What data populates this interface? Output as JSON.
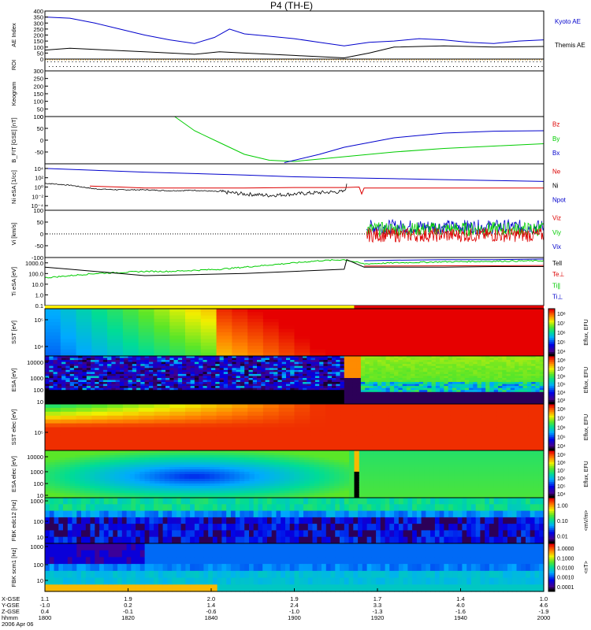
{
  "title": "P4 (TH-E)",
  "colors": {
    "kyoto": "#0000cc",
    "themis": "#000000",
    "red": "#dd0000",
    "green": "#00cc00",
    "blue": "#0000cc",
    "black": "#000000"
  },
  "chart_data": {
    "type": "line",
    "x_range": [
      "15:00",
      "20:00"
    ],
    "time_ticks": [
      "1500",
      "1520",
      "1540",
      "1600",
      "1620",
      "1640",
      "1700",
      "1720",
      "1740",
      "1800",
      "1820",
      "1840",
      "1900",
      "1920",
      "1940",
      "2000"
    ],
    "footer": {
      "row_labels": [
        "X-GSE",
        "Y-GSE",
        "Z-GSE",
        "hhmm",
        "2006 Apr 06"
      ],
      "columns": [
        {
          "x": "1.1",
          "y": "-1.0",
          "z": "0.4",
          "t": "1800"
        },
        {
          "x": "1.9",
          "y": "0.2",
          "z": "-0.1",
          "t": "1820"
        },
        {
          "x": "2.0",
          "y": "1.4",
          "z": "-0.6",
          "t": "1840"
        },
        {
          "x": "1.9",
          "y": "2.4",
          "z": "-1.0",
          "t": "1900"
        },
        {
          "x": "1.7",
          "y": "3.3",
          "z": "-1.3",
          "t": "1920"
        },
        {
          "x": "1.4",
          "y": "4.0",
          "z": "-1.6",
          "t": "1940"
        },
        {
          "x": "1.0",
          "y": "4.6",
          "z": "-1.9",
          "t": "2000"
        }
      ]
    },
    "panels": [
      {
        "id": "ae",
        "ylabel": "AE Index",
        "ylim": [
          0,
          400
        ],
        "yticks": [
          "0",
          "50",
          "100",
          "150",
          "200",
          "250",
          "300",
          "350",
          "400"
        ],
        "legend": [
          "Kyoto AE",
          "Themis AE"
        ],
        "series": [
          {
            "name": "Kyoto AE",
            "x": [
              0,
              0.05,
              0.1,
              0.15,
              0.2,
              0.25,
              0.3,
              0.34,
              0.37,
              0.4,
              0.45,
              0.5,
              0.55,
              0.6,
              0.65,
              0.7,
              0.75,
              0.8,
              0.85,
              0.9,
              0.95,
              1.0
            ],
            "y": [
              350,
              340,
              300,
              250,
              200,
              160,
              130,
              180,
              250,
              210,
              190,
              170,
              140,
              110,
              140,
              150,
              170,
              160,
              140,
              130,
              150,
              160
            ]
          },
          {
            "name": "Themis AE",
            "x": [
              0,
              0.05,
              0.1,
              0.2,
              0.3,
              0.35,
              0.4,
              0.5,
              0.6,
              0.65,
              0.7,
              0.8,
              0.9,
              1.0
            ],
            "y": [
              75,
              90,
              80,
              60,
              40,
              60,
              50,
              30,
              10,
              50,
              100,
              110,
              100,
              105
            ]
          }
        ]
      },
      {
        "id": "roi",
        "ylabel": "ROI"
      },
      {
        "id": "keogram",
        "ylabel": "Keogram",
        "ylim": [
          0,
          300
        ],
        "yticks": [
          "0",
          "50",
          "100",
          "150",
          "200",
          "250",
          "300"
        ]
      },
      {
        "id": "bfit",
        "ylabel": "B_FIT [GSE] [nT]",
        "ylim": [
          -100,
          100
        ],
        "yticks": [
          "-50",
          "0",
          "50",
          "100"
        ],
        "legend": [
          "Bz",
          "By",
          "Bx"
        ],
        "series": [
          {
            "name": "By",
            "x": [
              0.26,
              0.3,
              0.35,
              0.4,
              0.45,
              0.5,
              0.55,
              0.6,
              0.7,
              0.8,
              0.9,
              1.0
            ],
            "y": [
              100,
              40,
              -10,
              -60,
              -85,
              -90,
              -80,
              -70,
              -50,
              -35,
              -25,
              -15
            ]
          },
          {
            "name": "Bx",
            "x": [
              0.48,
              0.55,
              0.6,
              0.7,
              0.8,
              0.9,
              1.0
            ],
            "y": [
              -95,
              -60,
              -30,
              10,
              30,
              38,
              40
            ]
          }
        ]
      },
      {
        "id": "ni",
        "ylabel": "Ni eSA [1/cc]",
        "ylim_log": [
          -5,
          5
        ],
        "yticks": [
          "10⁻⁴",
          "10⁻²",
          "10⁰",
          "10²",
          "10⁴"
        ],
        "legend": [
          "Ne",
          "Ni",
          "Npot"
        ],
        "series": [
          {
            "name": "Ni",
            "x": [
              0,
              0.1,
              0.2,
              0.3,
              0.4,
              0.5,
              0.6,
              0.7,
              0.8,
              0.9,
              1.0
            ],
            "y": [
              4,
              3.6,
              3.2,
              2.9,
              2.6,
              2.2,
              2.0,
              1.8,
              1.6,
              1.4,
              1.2
            ]
          },
          {
            "name": "Ne",
            "x": [
              0.09,
              0.15,
              0.2,
              0.3,
              0.4,
              0.5,
              0.6,
              0.63,
              0.635,
              0.64,
              0.7,
              0.8,
              0.9,
              1.0
            ],
            "y": [
              0.2,
              0,
              -0.2,
              -0.2,
              -0.2,
              -0.1,
              -0.1,
              0,
              -1.5,
              -0.2,
              -0.2,
              -0.2,
              -0.2,
              -0.2
            ]
          },
          {
            "name": "Npot",
            "x": [
              0,
              0.05,
              0.1,
              0.15,
              0.2,
              0.25,
              0.3,
              0.35,
              0.4,
              0.45,
              0.5,
              0.55,
              0.6,
              0.605,
              0.62,
              0.64
            ],
            "y": [
              0.8,
              0.4,
              -0.4,
              -0.6,
              -0.6,
              -0.8,
              -0.7,
              -1.0,
              -1.5,
              -1.8,
              -1.5,
              -1.2,
              -1.0,
              0.4,
              0.2,
              -0.2
            ]
          }
        ]
      },
      {
        "id": "vi",
        "ylabel": "Vi [km/s]",
        "ylim": [
          -100,
          100
        ],
        "yticks": [
          "-100",
          "-50",
          "0",
          "50",
          "100"
        ],
        "legend": [
          "Viz",
          "Viy",
          "Vix"
        ]
      },
      {
        "id": "ti",
        "ylabel": "Ti eSA [eV]",
        "ylim_log": [
          -1,
          3.5
        ],
        "yticks": [
          "0.1",
          "1.0",
          "10.0",
          "100.0",
          "1000.0"
        ],
        "legend": [
          "Tell",
          "Te⊥",
          "Ti∥",
          "Ti⊥"
        ],
        "series": [
          {
            "name": "Tell",
            "x": [
              0,
              0.05,
              0.1,
              0.15,
              0.2,
              0.3,
              0.4,
              0.5,
              0.6,
              0.605,
              0.62,
              0.64,
              0.7,
              0.8,
              0.9,
              1.0
            ],
            "y": [
              2.6,
              2.4,
              2.2,
              2.0,
              1.8,
              1.9,
              2.0,
              2.2,
              2.4,
              3.3,
              3.0,
              2.6,
              2.6,
              2.6,
              2.65,
              2.65
            ]
          },
          {
            "name": "Ti∥",
            "x": [
              0,
              0.05,
              0.1,
              0.15,
              0.2,
              0.25,
              0.3,
              0.35,
              0.4,
              0.45,
              0.5,
              0.55,
              0.6,
              0.62,
              0.64,
              0.7,
              0.8,
              0.9,
              1.0
            ],
            "y": [
              1.6,
              1.8,
              2.0,
              2.1,
              2.2,
              2.2,
              2.3,
              2.4,
              2.6,
              2.8,
              3.0,
              3.2,
              3.3,
              3.1,
              2.9,
              3.0,
              3.1,
              3.15,
              3.2
            ]
          },
          {
            "name": "Ti⊥",
            "x": [
              0.64,
              0.7,
              0.8,
              0.9,
              1.0
            ],
            "y": [
              3.2,
              3.25,
              3.3,
              3.3,
              3.35
            ]
          }
        ]
      },
      {
        "id": "sst_ion",
        "ylabel": "SST [eV]",
        "yticks": [
          "10⁴",
          "10⁵"
        ],
        "colorbar": {
          "label": "Eflux, EFU",
          "ticks": [
            "10⁸",
            "10⁷",
            "10⁶",
            "10⁵",
            "10⁴"
          ]
        }
      },
      {
        "id": "esa_ion",
        "ylabel": "ESA [eV]",
        "yticks": [
          "10",
          "100",
          "1000",
          "10000"
        ],
        "colorbar": {
          "label": "Eflux, EFU",
          "ticks": [
            "10⁸",
            "10⁷",
            "10⁶",
            "10⁵",
            "10⁴",
            "10³"
          ]
        }
      },
      {
        "id": "sst_elec",
        "ylabel": "SST elec [eV]",
        "yticks": [
          "10⁵"
        ],
        "colorbar": {
          "label": "Eflux, EFU",
          "ticks": [
            "10⁸",
            "10⁷",
            "10⁶",
            "10⁵",
            "10⁴"
          ]
        }
      },
      {
        "id": "esa_elec",
        "ylabel": "ESA elec [eV]",
        "yticks": [
          "10",
          "100",
          "1000",
          "10000"
        ],
        "colorbar": {
          "label": "Eflux, EFU",
          "ticks": [
            "10⁹",
            "10⁸",
            "10⁷",
            "10⁶",
            "10⁵",
            "10⁴"
          ]
        }
      },
      {
        "id": "fbk_e",
        "ylabel": "FBK edc12 [Hz]",
        "yticks": [
          "10",
          "100",
          "1000"
        ],
        "colorbar": {
          "label": "<mV/m>",
          "ticks": [
            "1.00",
            "0.10",
            "0.01"
          ]
        }
      },
      {
        "id": "fbk_b",
        "ylabel": "FBK scm1 [Hz]",
        "yticks": [
          "10",
          "100",
          "1000"
        ],
        "colorbar": {
          "label": "<nT>",
          "ticks": [
            "1.0000",
            "0.1000",
            "0.0100",
            "0.0010",
            "0.0001"
          ]
        }
      }
    ]
  }
}
